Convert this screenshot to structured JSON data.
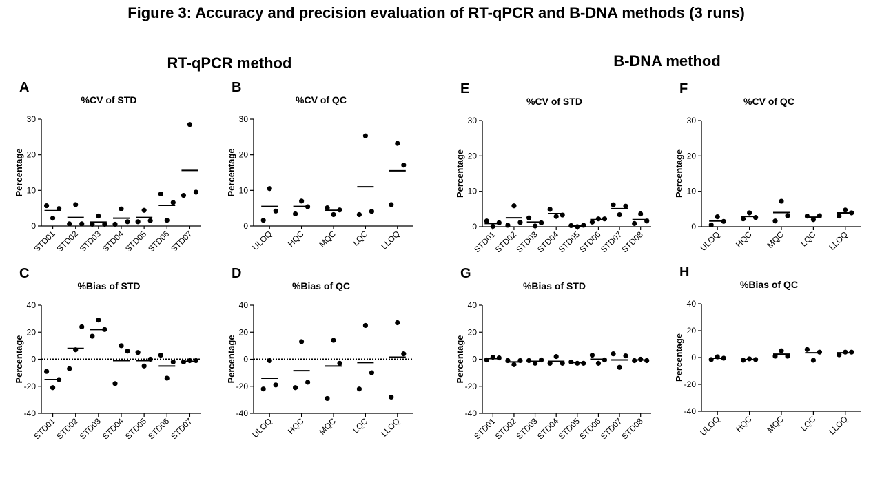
{
  "figure_title": "Figure 3: Accuracy and precision evaluation of RT-qPCR and B-DNA methods (3 runs)",
  "sections": {
    "left": "RT-qPCR method",
    "right": "B-DNA method"
  },
  "chart_data": [
    {
      "type": "scatter",
      "label": "A",
      "title": "%CV of STD",
      "ylabel": "Percentage",
      "ylim": [
        0,
        30
      ],
      "yticks": [
        0,
        10,
        20,
        30
      ],
      "zero_line": false,
      "categories": [
        "STD01",
        "STD02",
        "STD03",
        "STD04",
        "STD05",
        "STD06",
        "STD07"
      ],
      "points": [
        [
          5.7,
          2.2,
          4.9
        ],
        [
          0.6,
          6.0,
          0.6
        ],
        [
          0.5,
          2.8,
          0.5
        ],
        [
          0.5,
          4.8,
          1.2
        ],
        [
          1.2,
          4.4,
          1.5
        ],
        [
          9.0,
          1.6,
          6.6
        ],
        [
          8.6,
          28.5,
          9.5
        ]
      ],
      "means": [
        4.3,
        2.4,
        1.1,
        2.2,
        2.4,
        5.8,
        15.6
      ]
    },
    {
      "type": "scatter",
      "label": "B",
      "title": "%CV of QC",
      "ylabel": "Percentage",
      "ylim": [
        0,
        30
      ],
      "yticks": [
        0,
        10,
        20,
        30
      ],
      "zero_line": false,
      "categories": [
        "ULOQ",
        "HQC",
        "MQC",
        "LQC",
        "LLOQ"
      ],
      "points": [
        [
          1.6,
          10.5,
          4.2
        ],
        [
          3.4,
          7.0,
          5.4
        ],
        [
          5.1,
          3.2,
          4.5
        ],
        [
          3.2,
          25.3,
          4.1
        ],
        [
          6.0,
          23.2,
          17.1
        ]
      ],
      "means": [
        5.5,
        5.5,
        4.4,
        11.0,
        15.5
      ]
    },
    {
      "type": "scatter",
      "label": "C",
      "title": "%Bias of STD",
      "ylabel": "Percentage",
      "ylim": [
        -40,
        40
      ],
      "yticks": [
        -40,
        -20,
        0,
        20,
        40
      ],
      "zero_line": true,
      "categories": [
        "STD01",
        "STD02",
        "STD03",
        "STD04",
        "STD05",
        "STD06",
        "STD07"
      ],
      "points": [
        [
          -9,
          -21,
          -15
        ],
        [
          -7,
          7,
          24
        ],
        [
          17,
          29,
          22
        ],
        [
          -18,
          10,
          6
        ],
        [
          5,
          -5,
          0
        ],
        [
          3,
          -14,
          -2
        ],
        [
          -2,
          -1,
          -1
        ]
      ],
      "means": [
        -15,
        8,
        22,
        -1,
        -1,
        -5,
        -1.5
      ]
    },
    {
      "type": "scatter",
      "label": "D",
      "title": "%Bias of QC",
      "ylabel": "Percentage",
      "ylim": [
        -40,
        40
      ],
      "yticks": [
        -40,
        -20,
        0,
        20,
        40
      ],
      "zero_line": true,
      "categories": [
        "ULOQ",
        "HQC",
        "MQC",
        "LQC",
        "LLOQ"
      ],
      "points": [
        [
          -22,
          -1,
          -19
        ],
        [
          -21,
          13,
          -17
        ],
        [
          -29,
          14,
          -3
        ],
        [
          -22,
          25,
          -10
        ],
        [
          -28,
          27,
          4
        ]
      ],
      "means": [
        -14,
        -8.5,
        -5,
        -2.5,
        1.5
      ]
    },
    {
      "type": "scatter",
      "label": "E",
      "title": "%CV of STD",
      "ylabel": "Percentage",
      "ylim": [
        0,
        30
      ],
      "yticks": [
        0,
        10,
        20,
        30
      ],
      "zero_line": false,
      "categories": [
        "STD01",
        "STD02",
        "STD03",
        "STD04",
        "STD05",
        "STD06",
        "STD07",
        "STD08"
      ],
      "points": [
        [
          1.6,
          0.1,
          1.1
        ],
        [
          0.4,
          5.9,
          1.2
        ],
        [
          2.5,
          0.2,
          1.1
        ],
        [
          4.9,
          2.9,
          3.3
        ],
        [
          0.3,
          0.0,
          0.4
        ],
        [
          1.3,
          2.2,
          2.2
        ],
        [
          6.2,
          3.4,
          5.8
        ],
        [
          0.9,
          3.6,
          1.6
        ]
      ],
      "means": [
        0.9,
        2.5,
        1.3,
        3.7,
        0.2,
        2.0,
        5.1,
        2.0
      ]
    },
    {
      "type": "scatter",
      "label": "F",
      "title": "%CV of QC",
      "ylabel": "Percentage",
      "ylim": [
        0,
        30
      ],
      "yticks": [
        0,
        10,
        20,
        30
      ],
      "zero_line": false,
      "categories": [
        "ULOQ",
        "HQC",
        "MQC",
        "LQC",
        "LLOQ"
      ],
      "points": [
        [
          0.5,
          2.8,
          1.5
        ],
        [
          2.2,
          3.9,
          2.6
        ],
        [
          1.6,
          7.2,
          3.1
        ],
        [
          3.0,
          2.0,
          3.1
        ],
        [
          3.0,
          4.7,
          3.9
        ]
      ],
      "means": [
        1.6,
        2.9,
        4.0,
        2.7,
        3.9
      ]
    },
    {
      "type": "scatter",
      "label": "G",
      "title": "%Bias of STD",
      "ylabel": "Percentage",
      "ylim": [
        -40,
        40
      ],
      "yticks": [
        -40,
        -20,
        0,
        20,
        40
      ],
      "zero_line": false,
      "categories": [
        "STD01",
        "STD02",
        "STD03",
        "STD04",
        "STD05",
        "STD06",
        "STD07",
        "STD08"
      ],
      "points": [
        [
          -0.5,
          1.5,
          1.0
        ],
        [
          -1,
          -4,
          -1
        ],
        [
          -1,
          -3,
          -0.5
        ],
        [
          -3,
          2,
          -3
        ],
        [
          -2,
          -3,
          -3
        ],
        [
          3,
          -3,
          -0.5
        ],
        [
          4,
          -6,
          2.5
        ],
        [
          -1,
          0,
          -1
        ]
      ],
      "means": [
        0.5,
        -2,
        -1.5,
        -1.5,
        -2.5,
        0,
        -0.5,
        -0.5
      ]
    },
    {
      "type": "scatter",
      "label": "H",
      "title": "%Bias of QC",
      "ylabel": "Percentage",
      "ylim": [
        -40,
        40
      ],
      "yticks": [
        -40,
        -20,
        0,
        20,
        40
      ],
      "zero_line": false,
      "categories": [
        "ULOQ",
        "HQC",
        "MQC",
        "LQC",
        "LLOQ"
      ],
      "points": [
        [
          -1.5,
          0.5,
          -0.5
        ],
        [
          -2,
          -1,
          -1.5
        ],
        [
          1,
          5,
          1
        ],
        [
          6,
          -2,
          4
        ],
        [
          2,
          4,
          4
        ]
      ],
      "means": [
        -0.5,
        -1.5,
        2.5,
        3.5,
        3.5
      ]
    }
  ]
}
